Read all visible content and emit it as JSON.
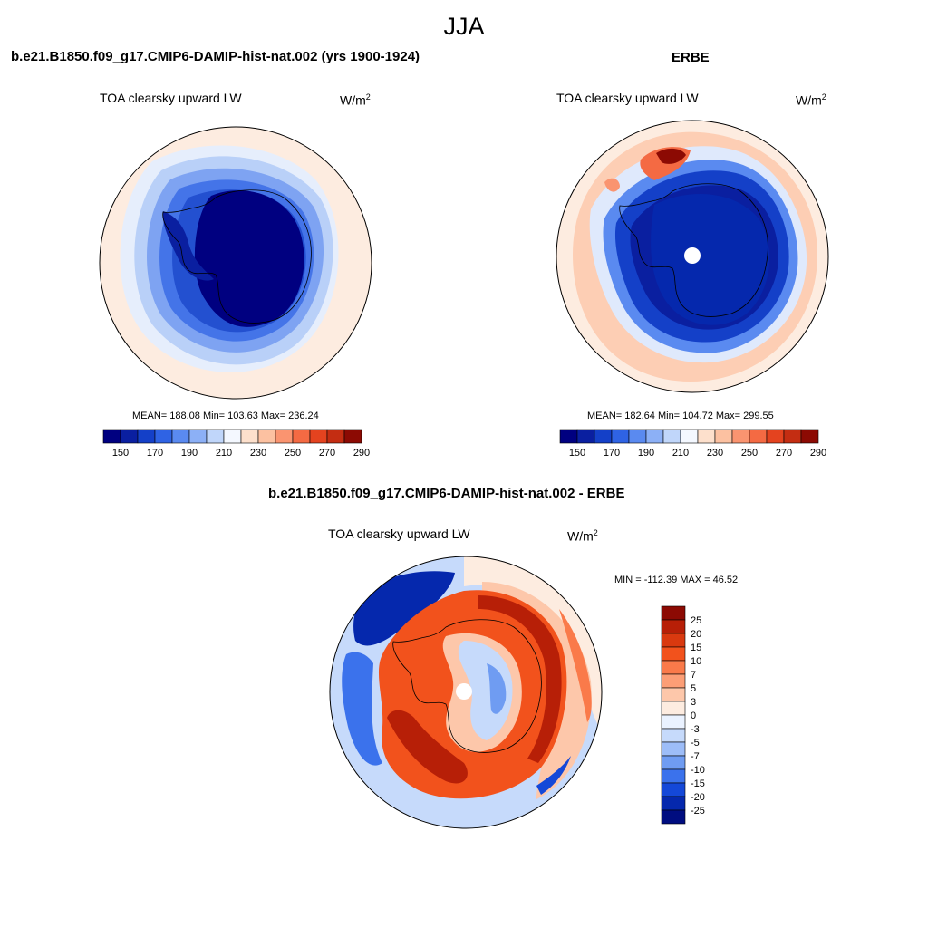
{
  "figure": {
    "title": "JJA"
  },
  "panels": [
    {
      "title": "b.e21.B1850.f09_g17.CMIP6-DAMIP-hist-nat.002 (yrs 1900-1924)",
      "variable": "TOA clearsky upward LW",
      "units_base": "W/m",
      "units_exp": "2",
      "stats": "MEAN= 188.08  Min= 103.63  Max= 236.24"
    },
    {
      "title": "ERBE",
      "variable": "TOA clearsky upward LW",
      "units_base": "W/m",
      "units_exp": "2",
      "stats": "MEAN= 182.64  Min= 104.72  Max= 299.55"
    },
    {
      "title": "b.e21.B1850.f09_g17.CMIP6-DAMIP-hist-nat.002 - ERBE",
      "variable": "TOA clearsky upward LW",
      "units_base": "W/m",
      "units_exp": "2",
      "stats": "MIN = -112.39 MAX =  46.52"
    }
  ],
  "colorbars": {
    "absolute": {
      "orientation": "horizontal",
      "colors": [
        "#000080",
        "#0a1fa0",
        "#1440c8",
        "#2f63e4",
        "#5a8af0",
        "#8cb0f6",
        "#c0d6fa",
        "#f4f8ff",
        "#fde0cc",
        "#fcc1a1",
        "#fa9470",
        "#f46a43",
        "#e4431f",
        "#c42d12",
        "#8c0a03"
      ],
      "tick_labels": [
        "150",
        "170",
        "190",
        "210",
        "230",
        "250",
        "270",
        "290"
      ]
    },
    "difference": {
      "orientation": "vertical",
      "colors": [
        "#8c0a03",
        "#b71f07",
        "#d9390f",
        "#f2521c",
        "#fa7a4a",
        "#fc9e76",
        "#fdc7aa",
        "#fdece0",
        "#eaf2ff",
        "#c6dafb",
        "#9dbdf8",
        "#6f9cf2",
        "#3b72ec",
        "#1448d8",
        "#0528ad",
        "#000d80"
      ],
      "tick_labels": [
        "25",
        "20",
        "15",
        "10",
        "7",
        "5",
        "3",
        "0",
        "-3",
        "-5",
        "-7",
        "-10",
        "-15",
        "-20",
        "-25"
      ]
    }
  }
}
